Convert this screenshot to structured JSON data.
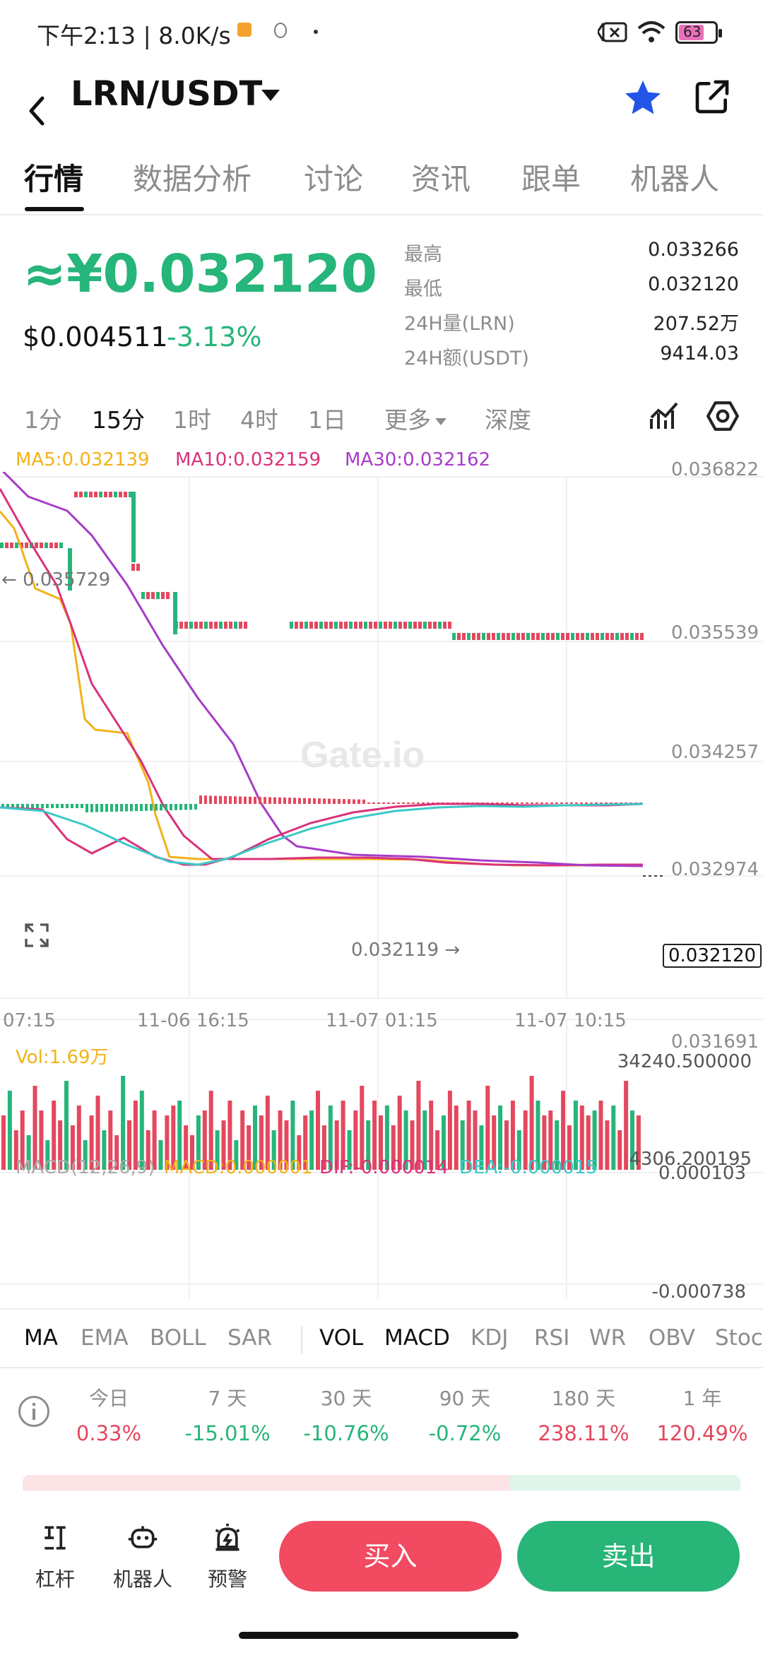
{
  "status_bar": {
    "time_text": "下午2:13 | 8.0K/s",
    "battery": "63"
  },
  "header": {
    "pair": "LRN/USDT"
  },
  "tabs": [
    "行情",
    "数据分析",
    "讨论",
    "资讯",
    "跟单",
    "机器人"
  ],
  "ticker": {
    "price_cny": "≈¥0.032120",
    "price_usd": "$0.004511",
    "change": "-3.13%",
    "stats": [
      {
        "label": "最高",
        "value": "0.033266"
      },
      {
        "label": "最低",
        "value": "0.032120"
      },
      {
        "label": "24H量(LRN)",
        "value": "207.52万"
      },
      {
        "label": "24H额(USDT)",
        "value": "9414.03"
      }
    ]
  },
  "intervals": [
    "1分",
    "15分",
    "1时",
    "4时",
    "1日",
    "更多",
    "深度"
  ],
  "ma_legend": {
    "ma5": "MA5:0.032139",
    "ma10": "MA10:0.032159",
    "ma30": "MA30:0.032162"
  },
  "chart": {
    "y_ticks": [
      "0.036822",
      "0.035539",
      "0.034257",
      "0.032974",
      "0.031691"
    ],
    "x_ticks": [
      "07:15",
      "11-06 16:15",
      "11-07 01:15",
      "11-07 10:15"
    ],
    "high_marker": "0.035729",
    "low_marker": "0.032119",
    "current_price": "0.032120",
    "watermark": "Gate.io"
  },
  "volume": {
    "label": "Vol:1.69万",
    "max": "34240.500000",
    "min": "4306.200195"
  },
  "macd": {
    "label": "MACD(12,26,9)",
    "macd": "MACD:0.000001",
    "dif": "DIF:-0.000014",
    "dea": "DEA:-0.000015",
    "max": "0.000103",
    "min": "-0.000738"
  },
  "indicators": [
    "MA",
    "EMA",
    "BOLL",
    "SAR",
    "VOL",
    "MACD",
    "KDJ",
    "RSI",
    "WR",
    "OBV",
    "Stoch"
  ],
  "performance": [
    {
      "label": "今日",
      "value": "0.33%"
    },
    {
      "label": "7 天",
      "value": "-15.01%"
    },
    {
      "label": "30 天",
      "value": "-10.76%"
    },
    {
      "label": "90 天",
      "value": "-0.72%"
    },
    {
      "label": "180 天",
      "value": "238.11%"
    },
    {
      "label": "1 年",
      "value": "120.49%"
    }
  ],
  "bottom": {
    "leverage": "杠杆",
    "robot": "机器人",
    "alert": "预警",
    "buy": "买入",
    "sell": "卖出"
  },
  "colors": {
    "up_red": "#e4485e",
    "down_green": "#26b57a",
    "ma5": "#f2b21a",
    "ma10": "#d9327a",
    "ma30": "#a63cc8"
  }
}
